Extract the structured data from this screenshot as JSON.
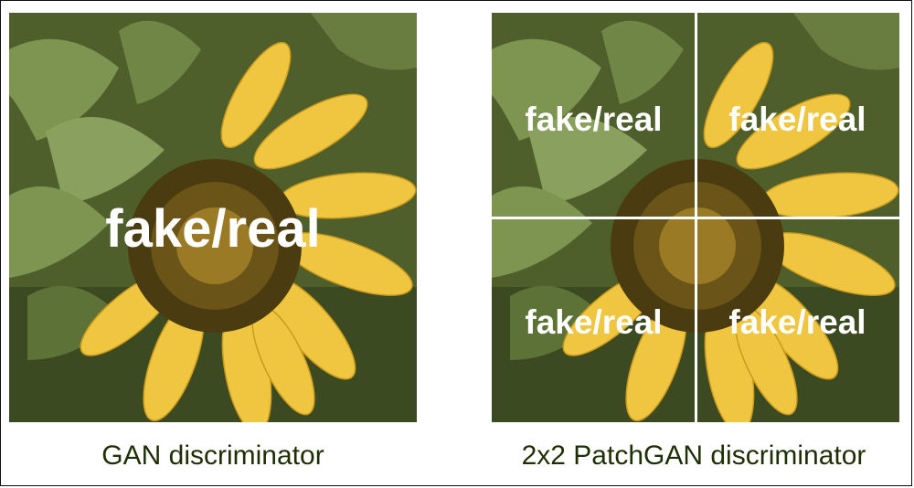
{
  "colors": {
    "background_green": "#4f5f2c",
    "leaf_green": "#7d9550",
    "petal_yellow": "#f0c640",
    "disc_brown": "#4a3b10",
    "label_white": "#ffffff",
    "caption_text": "#1e2f05"
  },
  "left_panel": {
    "label": "fake/real",
    "caption": "GAN discriminator"
  },
  "right_panel": {
    "patch_labels": [
      "fake/real",
      "fake/real",
      "fake/real",
      "fake/real"
    ],
    "caption": "2x2 PatchGAN discriminator"
  }
}
